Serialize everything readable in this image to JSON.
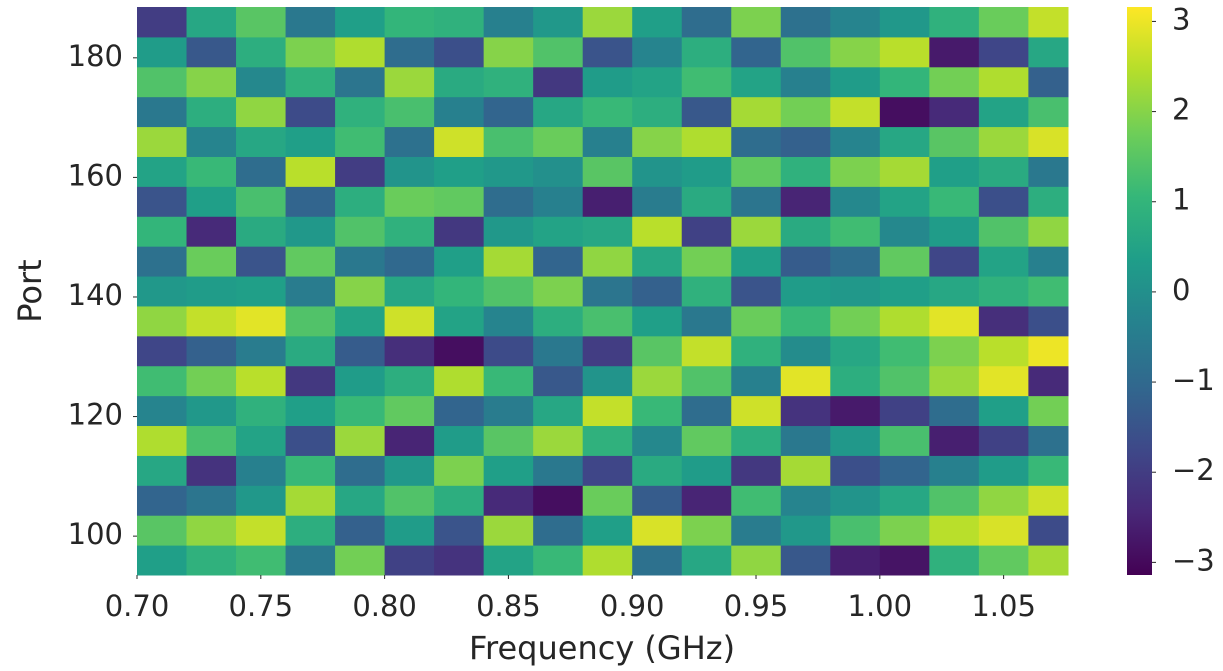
{
  "chart_data": {
    "type": "heatmap",
    "xlabel": "Frequency (GHz)",
    "ylabel": "Port",
    "colormap": "viridis",
    "xlim": [
      0.7,
      1.076
    ],
    "ylim": [
      93.5,
      188.5
    ],
    "clim": [
      -3.14,
      3.16
    ],
    "xbins": [
      0.7,
      0.72,
      0.74,
      0.76,
      0.78,
      0.8,
      0.82,
      0.84,
      0.86,
      0.88,
      0.9,
      0.92,
      0.94,
      0.96,
      0.98,
      1.0,
      1.02,
      1.04,
      1.06,
      1.076
    ],
    "ybins": [
      93.5,
      98.5,
      103.5,
      108.5,
      113.5,
      118.5,
      123.5,
      128.5,
      133.5,
      138.5,
      143.5,
      148.5,
      153.5,
      158.5,
      163.5,
      168.5,
      173.5,
      178.5,
      183.5,
      188.5
    ],
    "values": [
      [
        0.4,
        0.9,
        1.2,
        -0.6,
        1.8,
        -1.9,
        -2.2,
        0.5,
        1.1,
        2.4,
        -0.8,
        0.6,
        2.1,
        -1.4,
        -2.6,
        -2.8,
        0.9,
        1.6,
        2.3
      ],
      [
        1.5,
        2.1,
        2.6,
        0.8,
        -1.2,
        0.3,
        -1.5,
        2.2,
        -0.9,
        0.4,
        2.8,
        1.9,
        -0.5,
        0.2,
        1.3,
        1.9,
        2.5,
        2.8,
        -1.7
      ],
      [
        -1.1,
        -0.7,
        0.2,
        2.3,
        0.6,
        1.4,
        0.8,
        -2.4,
        -2.9,
        1.7,
        -1.3,
        -2.5,
        1.2,
        -0.3,
        0.1,
        0.6,
        1.4,
        2.1,
        2.7
      ],
      [
        0.6,
        -2.2,
        -0.4,
        1.1,
        -0.9,
        0.2,
        1.9,
        0.4,
        -0.6,
        -1.8,
        0.7,
        0.3,
        -2.1,
        2.3,
        -1.6,
        -1.1,
        -0.4,
        0.3,
        1.1
      ],
      [
        2.4,
        1.3,
        0.5,
        -1.6,
        2.2,
        -2.5,
        0.3,
        1.5,
        2.2,
        0.9,
        -0.2,
        1.6,
        0.8,
        -0.6,
        0.2,
        1.3,
        -2.6,
        -1.9,
        -0.8
      ],
      [
        -0.3,
        0.2,
        0.9,
        0.4,
        1.1,
        1.6,
        -1.1,
        -0.5,
        0.6,
        2.6,
        1.1,
        -0.9,
        2.7,
        -2.2,
        -2.7,
        -1.9,
        -0.9,
        0.4,
        1.8
      ],
      [
        1.2,
        1.8,
        2.5,
        -2.1,
        0.3,
        0.8,
        2.4,
        1.1,
        -1.4,
        0.1,
        2.2,
        1.4,
        -0.4,
        2.9,
        0.8,
        1.4,
        2.2,
        2.9,
        -2.4
      ],
      [
        -1.8,
        -1.2,
        -0.5,
        0.7,
        -1.3,
        -2.3,
        -2.9,
        -1.7,
        -0.6,
        -2.0,
        1.5,
        2.6,
        0.9,
        -0.1,
        0.6,
        1.2,
        1.9,
        2.5,
        3.0
      ],
      [
        2.1,
        2.6,
        2.9,
        1.4,
        0.5,
        2.7,
        0.5,
        -0.3,
        0.8,
        1.3,
        0.4,
        -0.6,
        1.7,
        1.1,
        1.8,
        2.4,
        2.9,
        -2.3,
        -1.6
      ],
      [
        0.2,
        0.3,
        0.4,
        -0.5,
        2.0,
        0.6,
        1.0,
        1.4,
        1.9,
        -0.7,
        -1.2,
        0.9,
        -1.5,
        0.3,
        0.2,
        0.4,
        0.6,
        0.9,
        1.2
      ],
      [
        -0.8,
        1.7,
        -1.5,
        1.6,
        -0.6,
        -1.0,
        0.4,
        2.3,
        -1.1,
        2.1,
        0.6,
        1.8,
        0.4,
        -1.3,
        -0.9,
        1.6,
        -1.8,
        0.5,
        -0.4
      ],
      [
        1.0,
        -2.4,
        0.7,
        0.2,
        1.4,
        0.9,
        -2.1,
        0.2,
        0.5,
        0.6,
        2.5,
        -1.9,
        2.2,
        0.7,
        1.2,
        -0.2,
        0.3,
        1.4,
        2.1
      ],
      [
        -1.5,
        0.4,
        1.3,
        -1.1,
        0.8,
        1.7,
        1.6,
        -0.9,
        -0.4,
        -2.6,
        -0.5,
        0.7,
        -0.7,
        -2.5,
        -0.2,
        0.5,
        1.1,
        -1.6,
        0.8
      ],
      [
        0.5,
        1.1,
        -0.9,
        2.5,
        -2.0,
        0.1,
        0.4,
        0.2,
        0.0,
        1.5,
        0.1,
        0.3,
        1.6,
        0.9,
        1.9,
        2.3,
        0.4,
        0.7,
        -0.6
      ],
      [
        2.2,
        -0.3,
        0.6,
        0.4,
        1.2,
        -0.8,
        2.7,
        1.3,
        1.7,
        -0.4,
        2.0,
        2.4,
        -0.9,
        -1.2,
        -0.3,
        0.6,
        1.5,
        2.2,
        2.8
      ],
      [
        -0.6,
        0.8,
        2.1,
        -1.7,
        0.9,
        1.3,
        -0.4,
        -1.1,
        0.6,
        1.1,
        0.8,
        -1.4,
        2.3,
        1.8,
        2.6,
        -2.9,
        -2.4,
        0.5,
        1.3
      ],
      [
        1.4,
        2.0,
        -0.2,
        0.9,
        -0.7,
        2.2,
        0.7,
        0.9,
        -2.1,
        0.3,
        0.5,
        1.2,
        0.5,
        -0.4,
        0.3,
        1.0,
        1.8,
        2.4,
        -1.2
      ],
      [
        0.3,
        -1.4,
        0.8,
        1.9,
        2.4,
        -0.9,
        -1.6,
        2.0,
        1.4,
        -1.5,
        -0.3,
        0.8,
        -1.1,
        1.4,
        2.0,
        2.5,
        -2.7,
        -1.8,
        0.6
      ],
      [
        -2.0,
        0.6,
        1.5,
        -0.6,
        0.4,
        1.0,
        0.9,
        -0.4,
        0.2,
        2.2,
        0.4,
        -0.9,
        1.9,
        -0.8,
        -0.3,
        0.2,
        0.9,
        1.7,
        2.6
      ]
    ],
    "xticks": [
      {
        "value": 0.7,
        "label": "0.70"
      },
      {
        "value": 0.75,
        "label": "0.75"
      },
      {
        "value": 0.8,
        "label": "0.80"
      },
      {
        "value": 0.85,
        "label": "0.85"
      },
      {
        "value": 0.9,
        "label": "0.90"
      },
      {
        "value": 0.95,
        "label": "0.95"
      },
      {
        "value": 1.0,
        "label": "1.00"
      },
      {
        "value": 1.05,
        "label": "1.05"
      }
    ],
    "yticks": [
      100,
      120,
      140,
      160,
      180
    ],
    "cticks": [
      {
        "value": -3,
        "label": "−3"
      },
      {
        "value": -2,
        "label": "−2"
      },
      {
        "value": -1,
        "label": "−1"
      },
      0,
      1,
      2,
      3
    ]
  }
}
